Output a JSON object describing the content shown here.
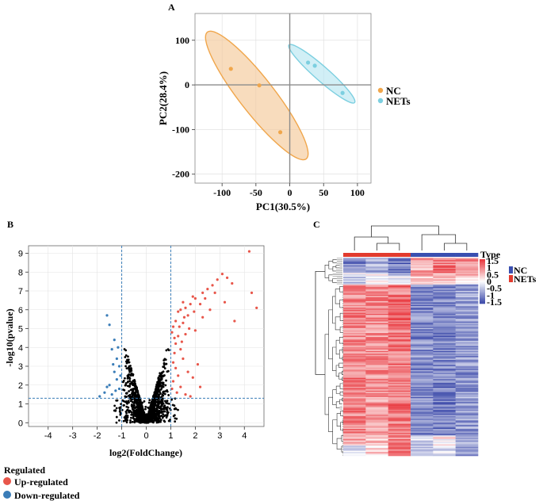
{
  "chart_data": [
    {
      "panel": "A",
      "type": "scatter",
      "xlabel": "PC1(30.5%)",
      "ylabel": "PC2(28.4%)",
      "xlim": [
        -140,
        120
      ],
      "ylim": [
        -220,
        160
      ],
      "xticks": [
        -100,
        -50,
        0,
        50,
        100
      ],
      "yticks": [
        -200,
        -100,
        0,
        100
      ],
      "series": [
        {
          "name": "NC",
          "color": "#F0A64B",
          "points": [
            [
              -87,
              36
            ],
            [
              -45,
              -1
            ],
            [
              -14,
              -106
            ]
          ],
          "ellipse_color": "#F4C999"
        },
        {
          "name": "NETs",
          "color": "#7CCFE0",
          "points": [
            [
              27,
              50
            ],
            [
              37,
              43
            ],
            [
              78,
              -18
            ]
          ],
          "ellipse_color": "#B8E7F1"
        }
      ],
      "zero_lines": true
    },
    {
      "panel": "B",
      "type": "scatter",
      "xlabel": "log2(FoldChange)",
      "ylabel": "-log10(pvalue)",
      "xlim": [
        -4.8,
        4.8
      ],
      "ylim": [
        -0.2,
        9.4
      ],
      "xticks": [
        -4,
        -3,
        -2,
        -1,
        0,
        1,
        2,
        3,
        4
      ],
      "yticks": [
        0,
        1,
        2,
        3,
        4,
        5,
        6,
        7,
        8,
        9
      ],
      "thresholds": {
        "fc": [
          -1,
          1
        ],
        "p": 1.3
      },
      "legend": {
        "title": "Regulated",
        "items": [
          {
            "label": "Up-regulated",
            "color": "#E8564A"
          },
          {
            "label": "Down-regulated",
            "color": "#3A7DB8"
          }
        ]
      },
      "colors": {
        "ns": "#000000",
        "up": "#E8564A",
        "down": "#3A7DB8"
      },
      "up_points": [
        [
          4.2,
          9.1
        ],
        [
          4.3,
          6.9
        ],
        [
          4.5,
          6.1
        ],
        [
          3.5,
          7.4
        ],
        [
          3.6,
          5.4
        ],
        [
          3.3,
          7.7
        ],
        [
          3.1,
          7.9
        ],
        [
          2.9,
          7.6
        ],
        [
          2.7,
          7.3
        ],
        [
          2.5,
          7.1
        ],
        [
          2.3,
          6.9
        ],
        [
          2.0,
          6.6
        ],
        [
          1.9,
          6.7
        ],
        [
          1.8,
          6.3
        ],
        [
          1.6,
          6.1
        ],
        [
          1.5,
          6.4
        ],
        [
          1.4,
          6.0
        ],
        [
          1.3,
          5.9
        ],
        [
          1.2,
          5.4
        ],
        [
          1.1,
          5.1
        ],
        [
          1.05,
          4.8
        ],
        [
          1.5,
          5.3
        ],
        [
          1.7,
          5.7
        ],
        [
          2.2,
          6.3
        ],
        [
          2.4,
          6.6
        ],
        [
          2.8,
          6.9
        ],
        [
          1.3,
          4.6
        ],
        [
          1.2,
          4.2
        ],
        [
          1.15,
          3.7
        ],
        [
          1.4,
          3.9
        ],
        [
          1.6,
          4.7
        ],
        [
          1.1,
          3.2
        ],
        [
          1.2,
          2.9
        ],
        [
          1.3,
          2.5
        ],
        [
          1.1,
          2.2
        ],
        [
          1.4,
          1.9
        ],
        [
          1.6,
          1.5
        ],
        [
          1.8,
          1.4
        ],
        [
          2.2,
          1.9
        ],
        [
          1.9,
          2.4
        ],
        [
          1.7,
          2.7
        ],
        [
          1.5,
          3.4
        ],
        [
          2.1,
          3.1
        ],
        [
          1.25,
          1.6
        ],
        [
          1.05,
          1.8
        ],
        [
          1.35,
          5.1
        ],
        [
          1.55,
          5.6
        ],
        [
          1.75,
          5.0
        ],
        [
          1.95,
          5.9
        ],
        [
          2.6,
          6.0
        ],
        [
          3.2,
          6.4
        ],
        [
          1.15,
          4.5
        ],
        [
          1.45,
          4.3
        ],
        [
          2.0,
          4.9
        ],
        [
          2.3,
          5.6
        ]
      ],
      "down_points": [
        [
          -1.6,
          5.7
        ],
        [
          -1.5,
          5.2
        ],
        [
          -1.3,
          4.4
        ],
        [
          -1.4,
          3.9
        ],
        [
          -1.2,
          3.4
        ],
        [
          -1.1,
          3.0
        ],
        [
          -1.3,
          2.7
        ],
        [
          -1.2,
          2.3
        ],
        [
          -1.5,
          2.0
        ],
        [
          -1.1,
          1.8
        ],
        [
          -1.7,
          1.6
        ],
        [
          -1.4,
          1.5
        ],
        [
          -1.25,
          1.7
        ],
        [
          -1.05,
          2.5
        ],
        [
          -1.35,
          3.1
        ],
        [
          -1.15,
          4.0
        ],
        [
          -1.6,
          1.9
        ],
        [
          -1.9,
          1.4
        ]
      ]
    },
    {
      "panel": "C",
      "type": "heatmap",
      "legend_title": "Type",
      "scale_ticks": [
        "1.5",
        "1",
        "0.5",
        "0",
        "-0.5",
        "-1",
        "-1.5"
      ],
      "scale_colors": {
        "high": "#E8333A",
        "mid": "#FFFFFF",
        "low": "#3846A8"
      },
      "groups": [
        {
          "label": "NC",
          "color": "#3A4FB0"
        },
        {
          "label": "NETs",
          "color": "#E23B2E"
        }
      ],
      "column_groups": [
        "NETs",
        "NETs",
        "NETs",
        "NC",
        "NC",
        "NC"
      ],
      "row_blocks": [
        {
          "rows": 12,
          "values": [
            -0.9,
            -0.6,
            -1.1,
            0.7,
            1.0,
            0.9
          ]
        },
        {
          "rows": 3,
          "values": [
            -0.3,
            -0.1,
            -0.5,
            0.6,
            0.4,
            0.8
          ]
        },
        {
          "rows": 6,
          "values": [
            -0.5,
            0.1,
            -0.2,
            0.2,
            0.6,
            0.1
          ]
        },
        {
          "rows": 118,
          "values": [
            0.9,
            0.8,
            1.0,
            -0.9,
            -1.0,
            -0.8
          ]
        },
        {
          "rows": 8,
          "values": [
            0.6,
            0.4,
            0.9,
            -0.4,
            0.1,
            -0.6
          ]
        },
        {
          "rows": 8,
          "values": [
            -0.2,
            0.3,
            0.8,
            -0.6,
            -0.3,
            -0.9
          ]
        }
      ]
    }
  ],
  "labels": {
    "A": "A",
    "B": "B",
    "C": "C"
  }
}
